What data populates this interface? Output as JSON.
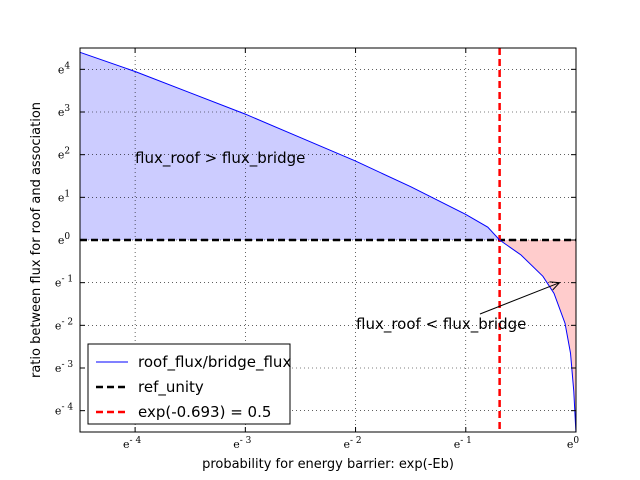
{
  "chart_data": {
    "type": "line",
    "xlabel": "probability for energy barrier: exp(-Eb)",
    "ylabel": "ratio between flux for roof and association",
    "x_scale": "log (base e)",
    "y_scale": "log (base e)",
    "xlim": [
      "e^-4.5",
      "e^0"
    ],
    "ylim": [
      "e^-4.5",
      "e^4.5"
    ],
    "x_ticks": [
      {
        "base": "e",
        "exp": "- 4"
      },
      {
        "base": "e",
        "exp": "- 3"
      },
      {
        "base": "e",
        "exp": "- 2"
      },
      {
        "base": "e",
        "exp": "- 1"
      },
      {
        "base": "e",
        "exp": "0"
      }
    ],
    "y_ticks": [
      {
        "base": "e",
        "exp": "4"
      },
      {
        "base": "e",
        "exp": "3"
      },
      {
        "base": "e",
        "exp": "2"
      },
      {
        "base": "e",
        "exp": "1"
      },
      {
        "base": "e",
        "exp": "0"
      },
      {
        "base": "e",
        "exp": "- 1"
      },
      {
        "base": "e",
        "exp": "- 2"
      },
      {
        "base": "e",
        "exp": "- 3"
      },
      {
        "base": "e",
        "exp": "- 4"
      }
    ],
    "grid": true,
    "legend_position": "lower-left",
    "series": [
      {
        "name": "roof_flux/bridge_flux",
        "color": "#0000ff",
        "style": "solid",
        "x_ln": [
          -4.5,
          -4.0,
          -3.5,
          -3.0,
          -2.5,
          -2.0,
          -1.5,
          -1.0,
          -0.8,
          -0.693,
          -0.5,
          -0.3,
          -0.2,
          -0.1,
          -0.05,
          -0.02
        ],
        "y_ln": [
          4.4,
          3.95,
          3.45,
          2.95,
          2.4,
          1.85,
          1.25,
          0.6,
          0.3,
          0.0,
          -0.35,
          -0.85,
          -1.25,
          -1.95,
          -2.65,
          -3.55
        ]
      },
      {
        "name": "ref_unity",
        "color": "#000000",
        "style": "dashed",
        "y_ln": 0
      },
      {
        "name": "exp(-0.693) = 0.5",
        "color": "#ff0000",
        "style": "dashed",
        "x_ln": -0.693
      }
    ],
    "fills": [
      {
        "region": "curve above ref_unity",
        "color": "#ccccff"
      },
      {
        "region": "curve below ref_unity",
        "color": "#ffcccc"
      }
    ],
    "annotations": [
      {
        "text": "flux_roof > flux_bridge"
      },
      {
        "text": "flux_roof < flux_bridge",
        "arrow_to_ln": [
          -0.15,
          -1.0
        ]
      }
    ]
  }
}
